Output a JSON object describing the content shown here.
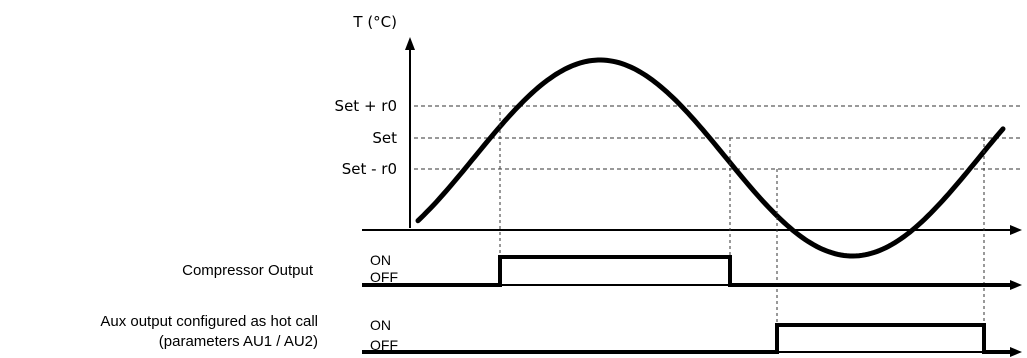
{
  "diagram": {
    "axis_title": "T (°C)",
    "levels": [
      {
        "key": "set_plus",
        "label": "Set + r0"
      },
      {
        "key": "set",
        "label": "Set"
      },
      {
        "key": "set_minus",
        "label": "Set - r0"
      }
    ],
    "outputs": [
      {
        "key": "compressor",
        "label_lines": [
          "Compressor Output"
        ],
        "on": "ON",
        "off": "OFF"
      },
      {
        "key": "aux",
        "label_lines": [
          "Aux output configured as hot call",
          "(parameters AU1 / AU2)"
        ],
        "on": "ON",
        "off": "OFF"
      }
    ]
  }
}
